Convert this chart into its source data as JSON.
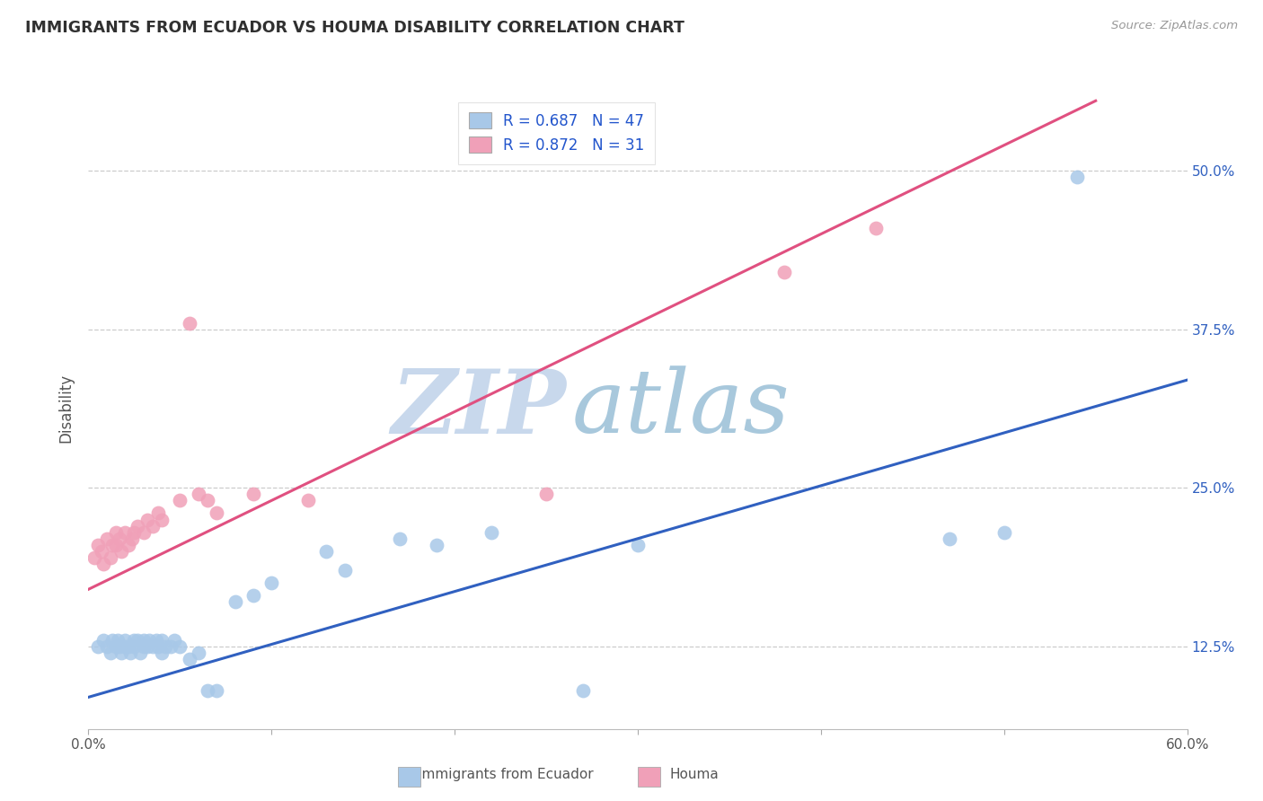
{
  "title": "IMMIGRANTS FROM ECUADOR VS HOUMA DISABILITY CORRELATION CHART",
  "source": "Source: ZipAtlas.com",
  "ylabel": "Disability",
  "legend_label1": "Immigrants from Ecuador",
  "legend_label2": "Houma",
  "R1": 0.687,
  "N1": 47,
  "R2": 0.872,
  "N2": 31,
  "xlim": [
    0.0,
    0.6
  ],
  "ylim": [
    0.06,
    0.565
  ],
  "xticks": [
    0.0,
    0.1,
    0.2,
    0.3,
    0.4,
    0.5,
    0.6
  ],
  "yticks_right": [
    0.125,
    0.25,
    0.375,
    0.5
  ],
  "ytick_labels_right": [
    "12.5%",
    "25.0%",
    "37.5%",
    "50.0%"
  ],
  "xtick_labels": [
    "0.0%",
    "",
    "",
    "",
    "",
    "",
    "60.0%"
  ],
  "color_blue": "#A8C8E8",
  "color_pink": "#F0A0B8",
  "color_blue_line": "#3060C0",
  "color_pink_line": "#E05080",
  "color_title": "#303030",
  "watermark_zip": "ZIP",
  "watermark_atlas": "atlas",
  "watermark_color_zip": "#C8D8EC",
  "watermark_color_atlas": "#A8C8DC",
  "blue_scatter_x": [
    0.005,
    0.008,
    0.01,
    0.012,
    0.013,
    0.015,
    0.016,
    0.017,
    0.018,
    0.02,
    0.02,
    0.022,
    0.023,
    0.025,
    0.025,
    0.027,
    0.028,
    0.03,
    0.03,
    0.032,
    0.033,
    0.035,
    0.037,
    0.038,
    0.04,
    0.04,
    0.042,
    0.045,
    0.047,
    0.05,
    0.055,
    0.06,
    0.065,
    0.07,
    0.08,
    0.09,
    0.1,
    0.13,
    0.14,
    0.17,
    0.19,
    0.22,
    0.27,
    0.3,
    0.47,
    0.5,
    0.54
  ],
  "blue_scatter_y": [
    0.125,
    0.13,
    0.125,
    0.12,
    0.13,
    0.125,
    0.13,
    0.125,
    0.12,
    0.13,
    0.125,
    0.125,
    0.12,
    0.13,
    0.125,
    0.13,
    0.12,
    0.125,
    0.13,
    0.125,
    0.13,
    0.125,
    0.13,
    0.125,
    0.12,
    0.13,
    0.125,
    0.125,
    0.13,
    0.125,
    0.115,
    0.12,
    0.09,
    0.09,
    0.16,
    0.165,
    0.175,
    0.2,
    0.185,
    0.21,
    0.205,
    0.215,
    0.09,
    0.205,
    0.21,
    0.215,
    0.495
  ],
  "pink_scatter_x": [
    0.003,
    0.005,
    0.007,
    0.008,
    0.01,
    0.012,
    0.013,
    0.015,
    0.015,
    0.017,
    0.018,
    0.02,
    0.022,
    0.024,
    0.025,
    0.027,
    0.03,
    0.032,
    0.035,
    0.038,
    0.04,
    0.05,
    0.055,
    0.06,
    0.065,
    0.07,
    0.09,
    0.12,
    0.25,
    0.38,
    0.43
  ],
  "pink_scatter_y": [
    0.195,
    0.205,
    0.2,
    0.19,
    0.21,
    0.195,
    0.205,
    0.215,
    0.205,
    0.21,
    0.2,
    0.215,
    0.205,
    0.21,
    0.215,
    0.22,
    0.215,
    0.225,
    0.22,
    0.23,
    0.225,
    0.24,
    0.38,
    0.245,
    0.24,
    0.23,
    0.245,
    0.24,
    0.245,
    0.42,
    0.455
  ],
  "blue_line_x": [
    0.0,
    0.6
  ],
  "blue_line_y": [
    0.085,
    0.335
  ],
  "pink_line_x": [
    0.0,
    0.55
  ],
  "pink_line_y": [
    0.17,
    0.555
  ]
}
